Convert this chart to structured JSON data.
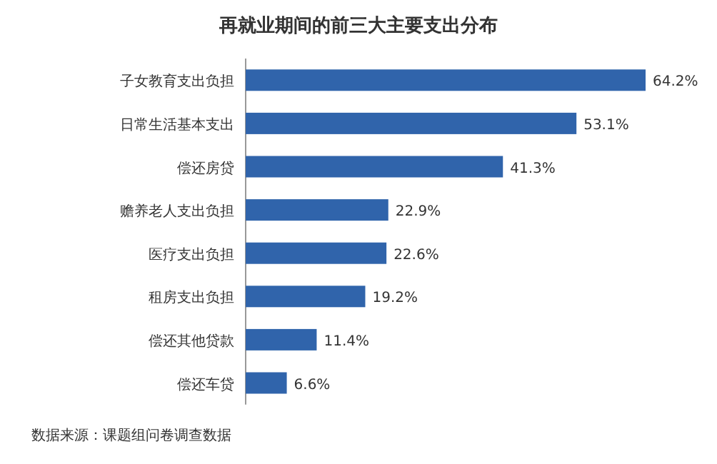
{
  "chart_data": {
    "type": "bar",
    "orientation": "horizontal",
    "title": "再就业期间的前三大主要支出分布",
    "categories": [
      "子女教育支出负担",
      "日常生活基本支出",
      "偿还房贷",
      "赡养老人支出负担",
      "医疗支出负担",
      "租房支出负担",
      "偿还其他贷款",
      "偿还车贷"
    ],
    "values": [
      64.2,
      53.1,
      41.3,
      22.9,
      22.6,
      19.2,
      11.4,
      6.6
    ],
    "value_labels": [
      "64.2%",
      "53.1%",
      "41.3%",
      "22.9%",
      "22.6%",
      "19.2%",
      "11.4%",
      "6.6%"
    ],
    "color": "#3064ab",
    "annotations": [
      "数据来源：课题组问卷调查数据"
    ]
  }
}
